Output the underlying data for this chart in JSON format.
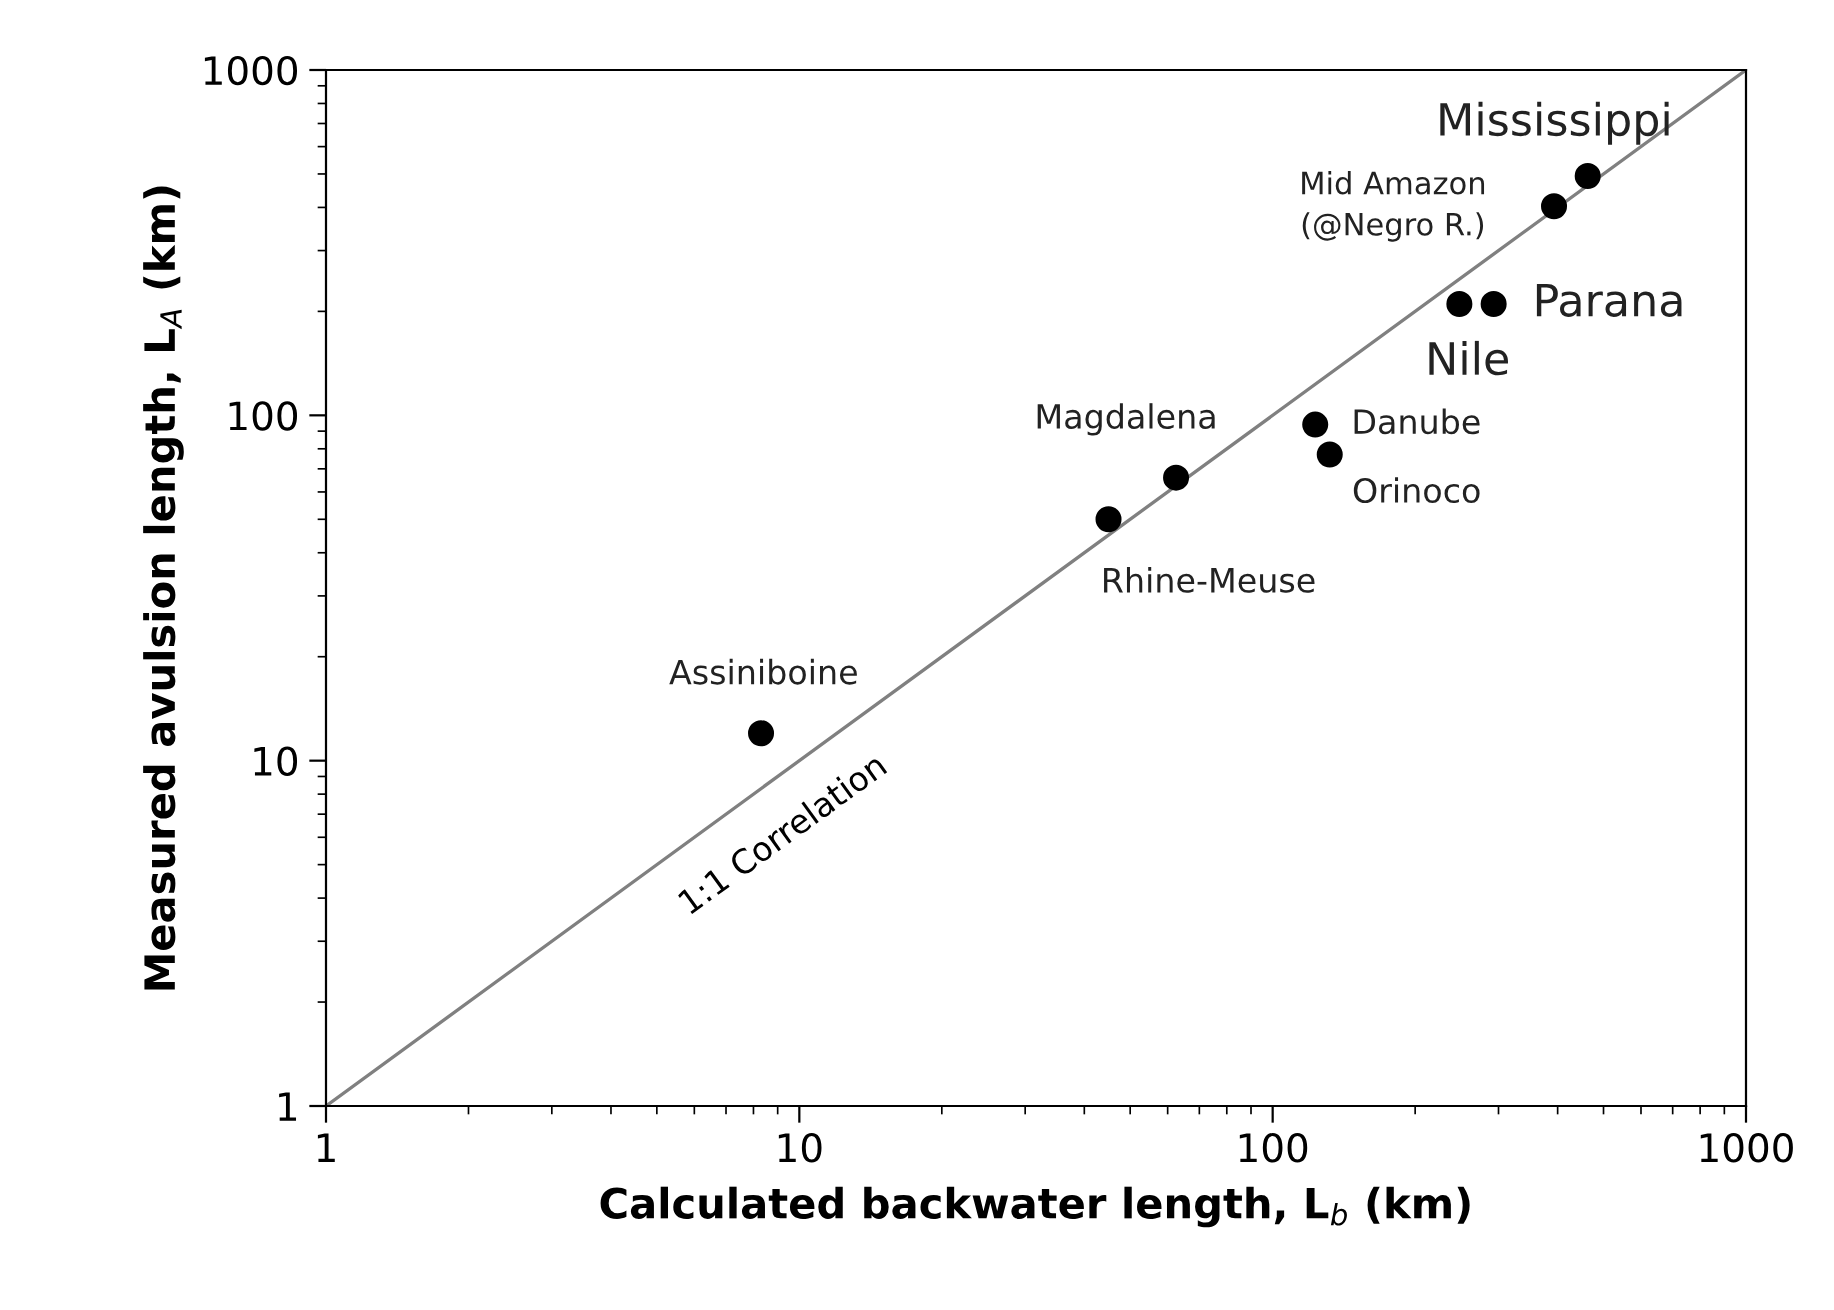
{
  "chart_data": {
    "type": "scatter",
    "xlabel": "Calculated backwater length, L$_{b}$ (km)",
    "ylabel": "Measured avulsion length, L$_{A}$ (km)",
    "log": "xy",
    "xlim": [
      1,
      1000
    ],
    "ylim": [
      1,
      1000
    ],
    "xticks": [
      1,
      10,
      100,
      1000
    ],
    "yticks": [
      1,
      10,
      100,
      1000
    ],
    "grid": false,
    "legend": false,
    "marker": "circle",
    "series": [
      {
        "color": "#000000",
        "x": [
          8.3,
          45,
          62.5,
          123,
          132,
          248,
          293,
          393,
          463
        ],
        "values": [
          12,
          50,
          66,
          94,
          77,
          210,
          210,
          403,
          493
        ]
      },
      {
        "type": "line",
        "name": "1:1 Correlation",
        "color": "#808080",
        "line_style": "solid",
        "marker": "none",
        "x": [
          1,
          1000
        ],
        "values": [
          1,
          1000
        ]
      }
    ],
    "annotations": [
      {
        "text": "Assiniboine",
        "x": 8.3,
        "y": 12
      },
      {
        "text": "Rhine-Meuse",
        "x": 45,
        "y": 50
      },
      {
        "text": "Magdalena",
        "x": 62.5,
        "y": 66
      },
      {
        "text": "Danube",
        "x": 123,
        "y": 94
      },
      {
        "text": "Orinoco",
        "x": 132,
        "y": 77
      },
      {
        "text": "Nile",
        "x": 248,
        "y": 210
      },
      {
        "text": "Parana",
        "x": 293,
        "y": 210
      },
      {
        "text": "Mid Amazon\n(@Negro R.)",
        "x": 393,
        "y": 403
      },
      {
        "text": "Mississippi",
        "x": 463,
        "y": 493
      }
    ]
  }
}
